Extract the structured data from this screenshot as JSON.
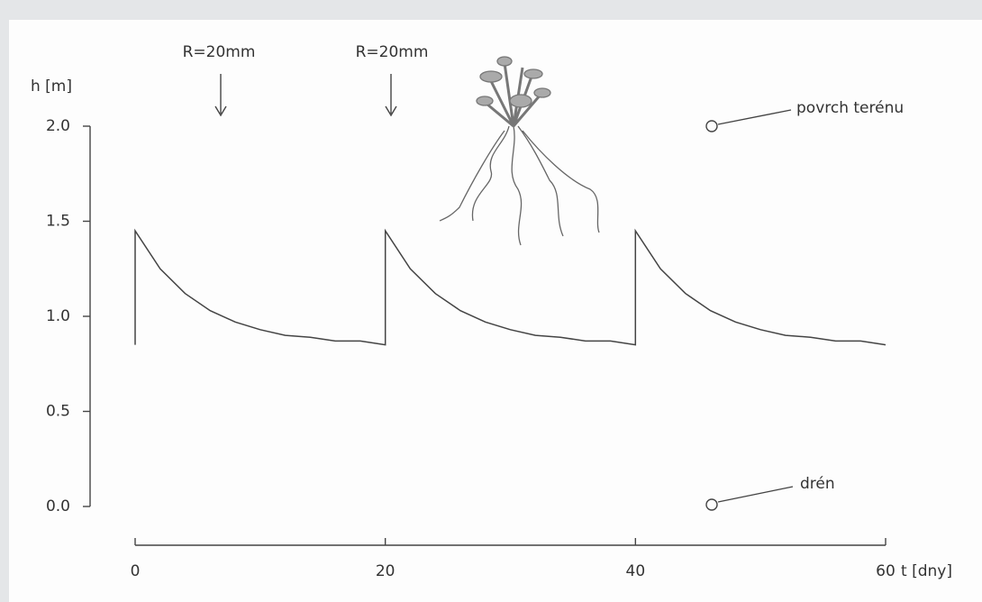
{
  "chart_data": {
    "type": "line",
    "y_label": "h [m]",
    "x_label": "t [dny]",
    "annotations": [
      "R=20mm",
      "R=20mm",
      "povrch terénu",
      "drén"
    ],
    "x": [
      0,
      0,
      2,
      4,
      6,
      8,
      10,
      12,
      14,
      16,
      18,
      20,
      20,
      22,
      24,
      26,
      28,
      30,
      32,
      34,
      36,
      38,
      40,
      40,
      42,
      44,
      46,
      48,
      50,
      52,
      54,
      56,
      58,
      60
    ],
    "values": [
      0.85,
      1.45,
      1.25,
      1.12,
      1.03,
      0.97,
      0.93,
      0.9,
      0.89,
      0.87,
      0.87,
      0.85,
      1.45,
      1.25,
      1.12,
      1.03,
      0.97,
      0.93,
      0.9,
      0.89,
      0.87,
      0.87,
      0.85,
      1.45,
      1.25,
      1.12,
      1.03,
      0.97,
      0.93,
      0.9,
      0.89,
      0.87,
      0.87,
      0.85
    ],
    "color": "#444444",
    "xlim": [
      0,
      60
    ],
    "xticks": [
      0,
      20,
      40,
      60
    ],
    "ylim": [
      0,
      2
    ],
    "yticks": [
      {
        "value": 0,
        "label": "0.0"
      },
      0.5,
      {
        "value": 1,
        "label": "1.0"
      },
      1.5,
      {
        "value": 2,
        "label": "2.0"
      }
    ]
  }
}
